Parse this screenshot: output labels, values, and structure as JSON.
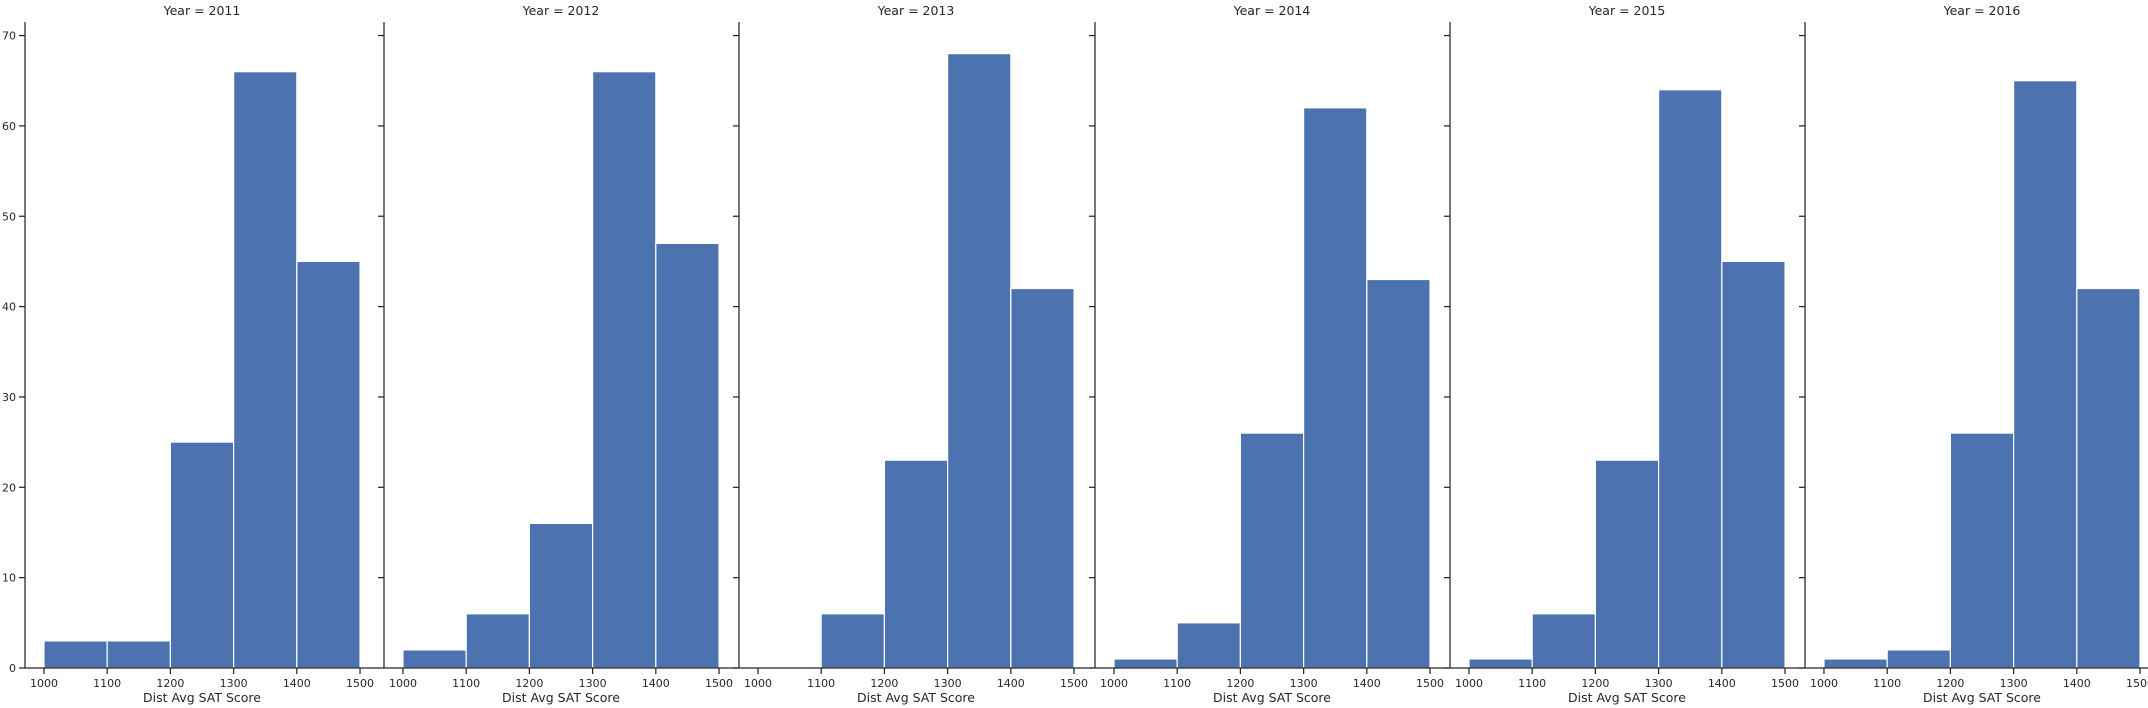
{
  "chart_data": {
    "type": "bar",
    "layout": "facet-grid",
    "sharey": true,
    "bar_color": "#4C72B0",
    "bar_edge_color": "#ffffff",
    "axis_color": "#262626",
    "bin_edges": [
      1000,
      1100,
      1200,
      1300,
      1400,
      1500
    ],
    "xlim": [
      970,
      1530
    ],
    "ylim": [
      0,
      71.5
    ],
    "xticks": [
      1000,
      1100,
      1200,
      1300,
      1400,
      1500
    ],
    "yticks": [
      0,
      10,
      20,
      30,
      40,
      50,
      60,
      70
    ],
    "xlabel": "Dist Avg SAT Score",
    "ylabel": "",
    "grid": false,
    "legend": "none",
    "panels": [
      {
        "title": "Year = 2011",
        "values": [
          3,
          3,
          25,
          66,
          45
        ]
      },
      {
        "title": "Year = 2012",
        "values": [
          2,
          6,
          16,
          66,
          47
        ]
      },
      {
        "title": "Year = 2013",
        "values": [
          0,
          6,
          23,
          68,
          42
        ]
      },
      {
        "title": "Year = 2014",
        "values": [
          1,
          5,
          26,
          62,
          43
        ]
      },
      {
        "title": "Year = 2015",
        "values": [
          1,
          6,
          23,
          64,
          45
        ]
      },
      {
        "title": "Year = 2016",
        "values": [
          1,
          2,
          26,
          65,
          42
        ]
      }
    ]
  }
}
